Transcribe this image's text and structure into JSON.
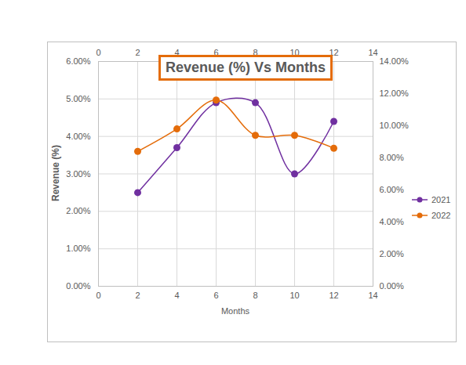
{
  "chart_data": {
    "type": "line",
    "title": "Revenue (%) Vs Months",
    "x_label": "Months",
    "y_label": "Revenue (%)",
    "x": [
      2,
      4,
      6,
      8,
      10,
      12
    ],
    "xlim": [
      0,
      14
    ],
    "xticks": [
      0,
      2,
      4,
      6,
      8,
      10,
      12,
      14
    ],
    "x2lim": [
      0,
      14
    ],
    "x2ticks": [
      0,
      2,
      4,
      6,
      8,
      10,
      12,
      14
    ],
    "ylim": [
      0,
      6
    ],
    "yticks": [
      {
        "value": 0,
        "label": "0.00%"
      },
      {
        "value": 1,
        "label": "1.00%"
      },
      {
        "value": 2,
        "label": "2.00%"
      },
      {
        "value": 3,
        "label": "3.00%"
      },
      {
        "value": 4,
        "label": "4.00%"
      },
      {
        "value": 5,
        "label": "5.00%"
      },
      {
        "value": 6,
        "label": "6.00%"
      }
    ],
    "y2lim": [
      0,
      14
    ],
    "y2ticks": [
      {
        "value": 0,
        "label": "0.00%"
      },
      {
        "value": 2,
        "label": "2.00%"
      },
      {
        "value": 4,
        "label": "4.00%"
      },
      {
        "value": 6,
        "label": "6.00%"
      },
      {
        "value": 8,
        "label": "8.00%"
      },
      {
        "value": 10,
        "label": "10.00%"
      },
      {
        "value": 12,
        "label": "12.00%"
      },
      {
        "value": 14,
        "label": "14.00%"
      }
    ],
    "grid": true,
    "legend": "right",
    "marker": "circle",
    "line_style": "smooth",
    "series": [
      {
        "name": "2021",
        "color": "#7030a0",
        "values": [
          2.5,
          3.7,
          4.9,
          4.9,
          3.0,
          4.4
        ]
      },
      {
        "name": "2022",
        "color": "#e46c0a",
        "axis": "y2",
        "values": [
          8.4,
          9.8,
          11.6,
          9.4,
          9.4,
          8.6
        ]
      }
    ]
  }
}
